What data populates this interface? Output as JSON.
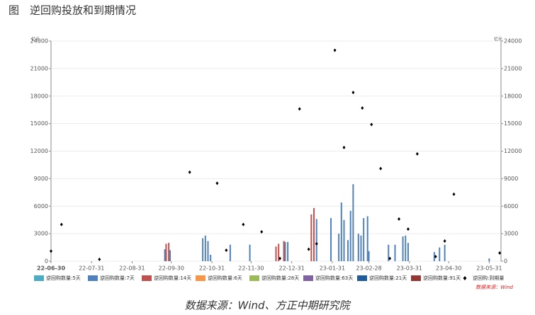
{
  "chart_data": {
    "type": "bar",
    "title": "图　逆回购投放和到期情况",
    "y_unit": "亿元",
    "y2_unit": "亿元",
    "source_note": "数据来源：Wind",
    "footer": "数据来源：Wind、方正中期研究院",
    "xlim": [
      "22-06-30",
      "23-06-09"
    ],
    "xticks": [
      "22-06-30",
      "22-07-31",
      "22-08-31",
      "22-09-30",
      "22-10-31",
      "22-11-30",
      "22-12-31",
      "23-01-31",
      "23-02-28",
      "23-03-31",
      "23-04-30",
      "23-05-31"
    ],
    "ylim": [
      0,
      24000
    ],
    "yticks": [
      0,
      3000,
      6000,
      9000,
      12000,
      15000,
      18000,
      21000,
      24000
    ],
    "y2lim": [
      0,
      24000
    ],
    "y2ticks": [
      0,
      3000,
      6000,
      9000,
      12000,
      15000,
      18000,
      21000,
      24000
    ],
    "grid": true,
    "series": [
      {
        "name": "逆回购数量:5天",
        "color": "#4bacc6",
        "x": [],
        "values": []
      },
      {
        "name": "逆回购数量:7天",
        "color": "#4f81bd",
        "x": [
          "22-09-25",
          "22-09-29",
          "22-10-24",
          "22-10-26",
          "22-10-28",
          "22-10-30",
          "22-11-14",
          "22-11-29",
          "22-12-26",
          "22-12-28",
          "23-01-19",
          "23-01-30",
          "23-02-05",
          "23-02-07",
          "23-02-09",
          "23-02-12",
          "23-02-14",
          "23-02-16",
          "23-02-20",
          "23-02-22",
          "23-02-24",
          "23-02-27",
          "23-02-28",
          "23-03-15",
          "23-03-20",
          "23-03-26",
          "23-03-28",
          "23-03-30",
          "23-04-19",
          "23-04-23",
          "23-04-27",
          "23-05-31"
        ],
        "values": [
          1300,
          1200,
          2500,
          2800,
          2200,
          700,
          1800,
          1800,
          2100,
          2100,
          4600,
          4700,
          3000,
          6400,
          4500,
          2300,
          5500,
          8400,
          3000,
          2800,
          4700,
          4900,
          1100,
          1800,
          1800,
          2700,
          2800,
          2000,
          1000,
          1500,
          1800,
          300
        ]
      },
      {
        "name": "逆回购数量:14天",
        "color": "#c0504d",
        "x": [
          "22-09-26",
          "22-09-28",
          "22-12-19",
          "22-12-21",
          "22-12-25",
          "23-01-15",
          "23-01-17"
        ],
        "values": [
          1900,
          2000,
          1600,
          1900,
          2200,
          5100,
          5800
        ]
      },
      {
        "name": "逆回购数量:6天",
        "color": "#f79646",
        "x": [],
        "values": []
      },
      {
        "name": "逆回购数量:28天",
        "color": "#9bbb59",
        "x": [],
        "values": []
      },
      {
        "name": "逆回购数量:63天",
        "color": "#8064a2",
        "x": [],
        "values": []
      },
      {
        "name": "逆回购数量:21天",
        "color": "#1f5c99",
        "x": [],
        "values": []
      },
      {
        "name": "逆回购数量:91天",
        "color": "#943634",
        "x": [],
        "values": []
      },
      {
        "name": "逆回购:到期量",
        "color": "#000000",
        "type": "scatter",
        "axis": "y2",
        "x": [
          "22-06-30",
          "22-07-08",
          "22-08-06",
          "22-10-14",
          "22-11-04",
          "22-11-11",
          "22-11-24",
          "22-12-08",
          "22-12-22",
          "23-01-06",
          "23-01-13",
          "23-01-19",
          "23-02-02",
          "23-02-09",
          "23-02-16",
          "23-02-23",
          "23-03-02",
          "23-03-09",
          "23-03-16",
          "23-03-23",
          "23-03-30",
          "23-04-06",
          "23-04-20",
          "23-04-27",
          "23-05-04",
          "23-06-08"
        ],
        "values": [
          1100,
          4000,
          200,
          9700,
          8500,
          1200,
          4000,
          3200,
          300,
          16600,
          1300,
          1900,
          23000,
          12400,
          18400,
          16700,
          14900,
          10100,
          300,
          4600,
          3500,
          11700,
          500,
          2200,
          7300,
          900
        ]
      }
    ]
  }
}
